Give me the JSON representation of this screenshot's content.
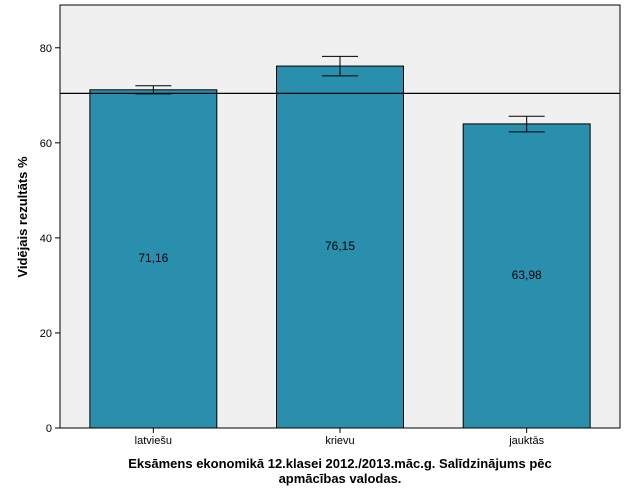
{
  "chart_data": {
    "type": "bar",
    "categories": [
      "latviešu",
      "krievu",
      "jauktās"
    ],
    "values": [
      71.16,
      76.15,
      63.98
    ],
    "value_labels": [
      "71,16",
      "76,15",
      "63,98"
    ],
    "error_bars": [
      [
        70.3,
        72.0
      ],
      [
        74.1,
        78.2
      ],
      [
        62.3,
        65.6
      ]
    ],
    "reference_line": 70.4,
    "ylabel": "Vidējais rezultāts %",
    "xlabel_lines": [
      "Eksāmens ekonomikā 12.klasei 2012./2013.māc.g. Salīdzinājums pēc",
      "apmācības valodas."
    ],
    "ylim": [
      0,
      89
    ],
    "yticks": [
      0,
      20,
      40,
      60,
      80
    ],
    "colors": {
      "bar": "#2a8fad",
      "plot_bg": "#f0f0f0",
      "outline": "#000000"
    },
    "grid": false,
    "legend": "none"
  }
}
